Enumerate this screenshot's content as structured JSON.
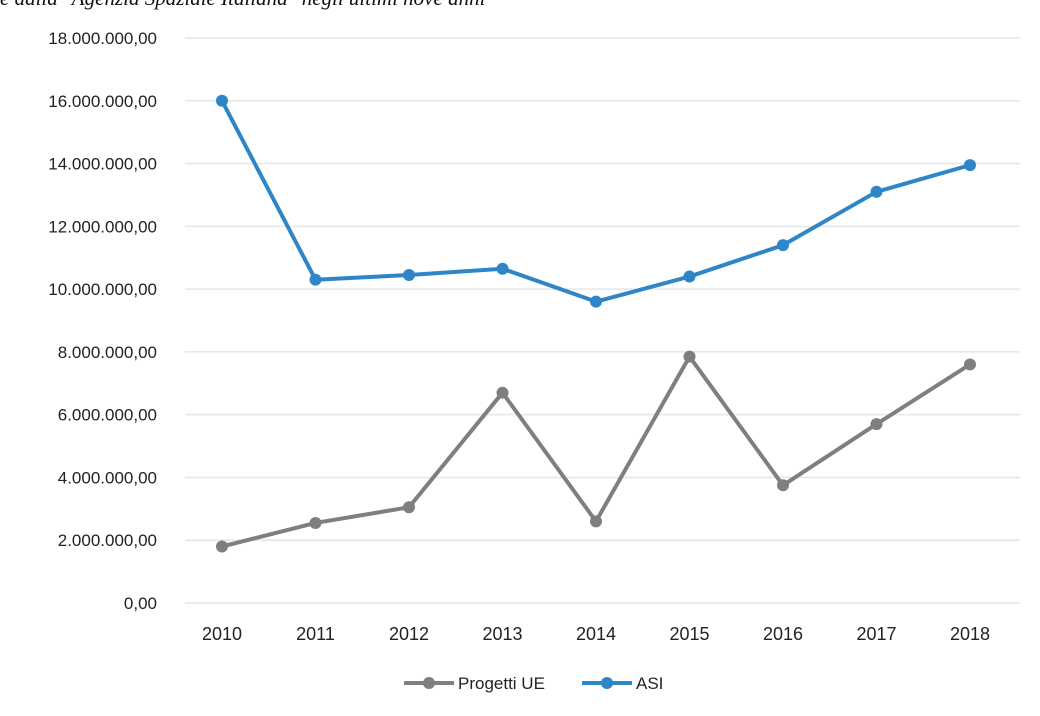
{
  "caption": "e dalla \"Agenzia Spaziale Italiana\" negli ultimi nove anni",
  "chart_data": {
    "type": "line",
    "title": "",
    "xlabel": "",
    "ylabel": "",
    "x": [
      "2010",
      "2011",
      "2012",
      "2013",
      "2014",
      "2015",
      "2016",
      "2017",
      "2018"
    ],
    "ylim": [
      0,
      18000000
    ],
    "y_ticks": [
      0,
      2000000,
      4000000,
      6000000,
      8000000,
      10000000,
      12000000,
      14000000,
      16000000,
      18000000
    ],
    "y_tick_labels": [
      "0,00",
      "2.000.000,00",
      "4.000.000,00",
      "6.000.000,00",
      "8.000.000,00",
      "10.000.000,00",
      "12.000.000,00",
      "14.000.000,00",
      "16.000.000,00",
      "18.000.000,00"
    ],
    "grid": true,
    "legend_position": "bottom",
    "series": [
      {
        "name": "Progetti UE",
        "color": "#7f7f7f",
        "values": [
          1800000,
          2550000,
          3050000,
          6700000,
          2600000,
          7850000,
          3750000,
          5700000,
          7600000
        ]
      },
      {
        "name": "ASI",
        "color": "#2e86c8",
        "values": [
          16000000,
          10300000,
          10450000,
          10650000,
          9600000,
          10400000,
          11400000,
          13100000,
          13950000
        ]
      }
    ]
  }
}
